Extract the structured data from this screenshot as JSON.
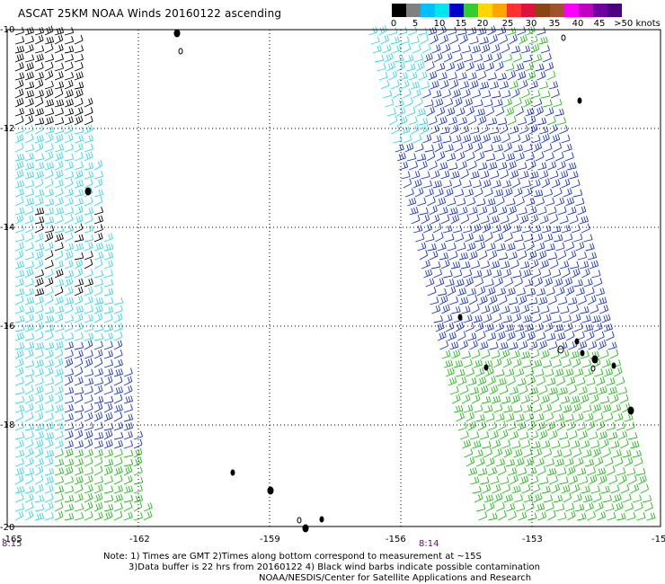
{
  "title": "ASCAT 25KM NOAA Winds 20160122 ascending",
  "legend": {
    "labels": [
      "0",
      "5",
      "10",
      "15",
      "20",
      "25",
      "30",
      "35",
      "40",
      "45",
      ">50 knots"
    ],
    "colors": [
      "#000000",
      "#808080",
      "#00bfff",
      "#00e5ee",
      "#0000cd",
      "#32cd32",
      "#ffd700",
      "#ffa500",
      "#ff3030",
      "#dc143c",
      "#8b4513",
      "#a0522d",
      "#ff00ff",
      "#c000c0",
      "#7000a0",
      "#4b0082"
    ]
  },
  "map": {
    "lon_labels": [
      "-165",
      "-162",
      "-159",
      "-156",
      "-153",
      "-15"
    ],
    "lat_labels": [
      "-10",
      "-12",
      "-14",
      "-16",
      "-18",
      "-20"
    ]
  },
  "times": {
    "left": "8:15",
    "right": "8:14"
  },
  "notes": {
    "line1": "Note: 1) Times are GMT 2)Times along bottom correspond to measurement at ~15S",
    "line2": "3)Data buffer is 22 hrs from 20160122 4) Black wind barbs indicate possible contamination",
    "line3": "NOAA/NESDIS/Center for Satellite Applications and Research"
  }
}
